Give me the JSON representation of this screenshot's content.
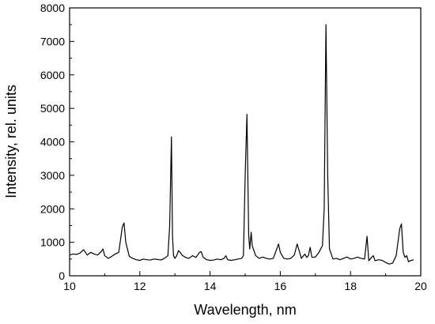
{
  "chart_data": {
    "type": "line",
    "title": "",
    "xlabel": "Wavelength, nm",
    "ylabel": "Intensity, rel. units",
    "xlim": [
      10,
      20
    ],
    "ylim": [
      0,
      8000
    ],
    "x_ticks": [
      10,
      12,
      14,
      16,
      18,
      20
    ],
    "y_ticks": [
      0,
      1000,
      2000,
      3000,
      4000,
      5000,
      6000,
      7000,
      8000
    ],
    "x_tick_labels": [
      "10",
      "12",
      "14",
      "16",
      "18",
      "20"
    ],
    "y_tick_labels": [
      "0",
      "1000",
      "2000",
      "3000",
      "4000",
      "5000",
      "6000",
      "7000",
      "8000"
    ],
    "grid": false,
    "legend": "none",
    "line_color": "#000000",
    "series": [
      {
        "x": [
          10.0,
          10.1,
          10.2,
          10.3,
          10.4,
          10.5,
          10.6,
          10.7,
          10.8,
          10.9,
          10.95,
          11.0,
          11.1,
          11.2,
          11.3,
          11.4,
          11.5,
          11.55,
          11.6,
          11.7,
          11.8,
          11.9,
          12.0,
          12.1,
          12.2,
          12.3,
          12.4,
          12.5,
          12.6,
          12.7,
          12.8,
          12.85,
          12.9,
          12.93,
          12.96,
          13.0,
          13.05,
          13.1,
          13.15,
          13.2,
          13.3,
          13.4,
          13.5,
          13.6,
          13.7,
          13.75,
          13.8,
          13.9,
          14.0,
          14.1,
          14.2,
          14.3,
          14.4,
          14.45,
          14.5,
          14.6,
          14.7,
          14.8,
          14.9,
          14.95,
          15.0,
          15.05,
          15.1,
          15.13,
          15.17,
          15.2,
          15.3,
          15.4,
          15.5,
          15.6,
          15.7,
          15.8,
          15.9,
          15.95,
          16.0,
          16.1,
          16.2,
          16.3,
          16.4,
          16.48,
          16.55,
          16.6,
          16.7,
          16.75,
          16.8,
          16.85,
          16.9,
          17.0,
          17.1,
          17.2,
          17.25,
          17.3,
          17.35,
          17.4,
          17.5,
          17.6,
          17.7,
          17.8,
          17.9,
          18.0,
          18.1,
          18.2,
          18.3,
          18.4,
          18.47,
          18.52,
          18.6,
          18.65,
          18.7,
          18.8,
          18.9,
          19.0,
          19.1,
          19.2,
          19.3,
          19.4,
          19.45,
          19.5,
          19.55,
          19.6,
          19.65,
          19.7,
          19.8
        ],
        "y": [
          620,
          650,
          640,
          680,
          780,
          620,
          700,
          650,
          620,
          720,
          800,
          600,
          520,
          580,
          650,
          700,
          1450,
          1580,
          1000,
          580,
          520,
          480,
          460,
          500,
          480,
          470,
          500,
          490,
          470,
          520,
          600,
          1500,
          4150,
          1200,
          600,
          520,
          600,
          750,
          700,
          620,
          550,
          520,
          600,
          550,
          700,
          720,
          560,
          480,
          460,
          470,
          500,
          480,
          520,
          600,
          480,
          460,
          480,
          500,
          520,
          600,
          3000,
          4820,
          1200,
          800,
          1300,
          900,
          600,
          520,
          560,
          520,
          500,
          520,
          800,
          950,
          700,
          520,
          500,
          520,
          620,
          950,
          700,
          520,
          650,
          550,
          600,
          850,
          550,
          560,
          700,
          900,
          2000,
          7500,
          3000,
          800,
          500,
          520,
          480,
          520,
          560,
          500,
          520,
          560,
          520,
          500,
          1180,
          450,
          550,
          600,
          450,
          480,
          460,
          400,
          350,
          380,
          600,
          1400,
          1550,
          700,
          550,
          600,
          420,
          450,
          480
        ]
      }
    ]
  }
}
